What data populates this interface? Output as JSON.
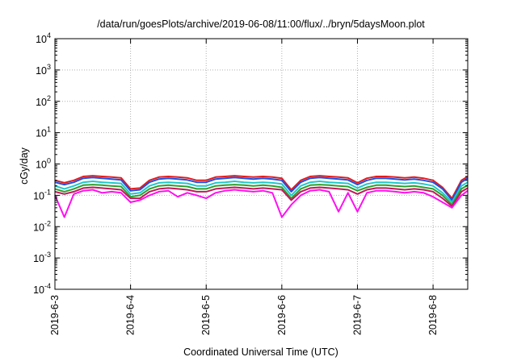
{
  "chart_data": {
    "type": "line",
    "title": "/data/run/goesPlots/archive/2019-06-08/11:00/flux/../bryn/5daysMoon.plot",
    "xlabel": "Coordinated Universal Time (UTC)",
    "ylabel": "cGy/day",
    "y_scale": "log",
    "ylim": [
      0.0001,
      10000
    ],
    "xlim": [
      "2019-06-03T00:00",
      "2019-06-08T11:00"
    ],
    "grid": true,
    "x_ticks": [
      "2019-6-3",
      "2019-6-4",
      "2019-6-5",
      "2019-6-6",
      "2019-6-7",
      "2019-6-8"
    ],
    "y_ticks": [
      {
        "base": "10",
        "exp": "-4"
      },
      {
        "base": "10",
        "exp": "-3"
      },
      {
        "base": "10",
        "exp": "-2"
      },
      {
        "base": "10",
        "exp": "-1"
      },
      {
        "base": "10",
        "exp": "0"
      },
      {
        "base": "10",
        "exp": "1"
      },
      {
        "base": "10",
        "exp": "2"
      },
      {
        "base": "10",
        "exp": "3"
      },
      {
        "base": "10",
        "exp": "4"
      }
    ],
    "x": [
      "2019-06-03T00:00",
      "2019-06-03T03:00",
      "2019-06-03T06:00",
      "2019-06-03T09:00",
      "2019-06-03T12:00",
      "2019-06-03T15:00",
      "2019-06-03T18:00",
      "2019-06-03T21:00",
      "2019-06-04T00:00",
      "2019-06-04T03:00",
      "2019-06-04T06:00",
      "2019-06-04T09:00",
      "2019-06-04T12:00",
      "2019-06-04T15:00",
      "2019-06-04T18:00",
      "2019-06-04T21:00",
      "2019-06-05T00:00",
      "2019-06-05T03:00",
      "2019-06-05T06:00",
      "2019-06-05T09:00",
      "2019-06-05T12:00",
      "2019-06-05T15:00",
      "2019-06-05T18:00",
      "2019-06-05T21:00",
      "2019-06-06T00:00",
      "2019-06-06T03:00",
      "2019-06-06T06:00",
      "2019-06-06T09:00",
      "2019-06-06T12:00",
      "2019-06-06T15:00",
      "2019-06-06T18:00",
      "2019-06-06T21:00",
      "2019-06-07T00:00",
      "2019-06-07T03:00",
      "2019-06-07T06:00",
      "2019-06-07T09:00",
      "2019-06-07T12:00",
      "2019-06-07T15:00",
      "2019-06-07T18:00",
      "2019-06-07T21:00",
      "2019-06-08T00:00",
      "2019-06-08T03:00",
      "2019-06-08T06:00",
      "2019-06-08T09:00",
      "2019-06-08T11:00"
    ],
    "series": [
      {
        "color": "#e41a1c",
        "values": [
          0.3,
          0.25,
          0.3,
          0.4,
          0.42,
          0.4,
          0.38,
          0.36,
          0.16,
          0.17,
          0.3,
          0.38,
          0.4,
          0.38,
          0.36,
          0.3,
          0.3,
          0.38,
          0.4,
          0.42,
          0.4,
          0.38,
          0.4,
          0.38,
          0.35,
          0.15,
          0.3,
          0.4,
          0.42,
          0.4,
          0.38,
          0.36,
          0.25,
          0.35,
          0.4,
          0.4,
          0.38,
          0.36,
          0.38,
          0.35,
          0.3,
          0.18,
          0.08,
          0.3,
          0.4
        ]
      },
      {
        "color": "#1f4fe0",
        "values": [
          0.26,
          0.22,
          0.26,
          0.35,
          0.37,
          0.35,
          0.33,
          0.31,
          0.14,
          0.15,
          0.26,
          0.33,
          0.35,
          0.33,
          0.31,
          0.26,
          0.26,
          0.33,
          0.35,
          0.37,
          0.35,
          0.33,
          0.35,
          0.33,
          0.3,
          0.13,
          0.26,
          0.35,
          0.37,
          0.35,
          0.33,
          0.31,
          0.22,
          0.3,
          0.35,
          0.35,
          0.33,
          0.31,
          0.33,
          0.3,
          0.26,
          0.16,
          0.07,
          0.26,
          0.35
        ]
      },
      {
        "color": "#20c8c8",
        "values": [
          0.2,
          0.16,
          0.2,
          0.26,
          0.28,
          0.26,
          0.25,
          0.24,
          0.11,
          0.12,
          0.2,
          0.25,
          0.26,
          0.25,
          0.24,
          0.2,
          0.2,
          0.25,
          0.26,
          0.28,
          0.26,
          0.25,
          0.26,
          0.25,
          0.23,
          0.1,
          0.2,
          0.26,
          0.28,
          0.26,
          0.25,
          0.24,
          0.17,
          0.23,
          0.26,
          0.26,
          0.25,
          0.24,
          0.25,
          0.23,
          0.2,
          0.12,
          0.06,
          0.2,
          0.26
        ]
      },
      {
        "color": "#2ca02c",
        "values": [
          0.16,
          0.13,
          0.16,
          0.21,
          0.22,
          0.21,
          0.2,
          0.19,
          0.09,
          0.1,
          0.16,
          0.2,
          0.21,
          0.2,
          0.19,
          0.16,
          0.16,
          0.2,
          0.21,
          0.22,
          0.21,
          0.2,
          0.21,
          0.2,
          0.18,
          0.08,
          0.16,
          0.21,
          0.22,
          0.21,
          0.2,
          0.19,
          0.14,
          0.18,
          0.21,
          0.21,
          0.2,
          0.19,
          0.2,
          0.18,
          0.16,
          0.1,
          0.05,
          0.16,
          0.21
        ]
      },
      {
        "color": "#c2185b",
        "values": [
          0.13,
          0.11,
          0.13,
          0.17,
          0.18,
          0.17,
          0.16,
          0.15,
          0.08,
          0.08,
          0.13,
          0.16,
          0.17,
          0.16,
          0.15,
          0.13,
          0.13,
          0.16,
          0.17,
          0.18,
          0.17,
          0.16,
          0.17,
          0.16,
          0.15,
          0.07,
          0.13,
          0.17,
          0.18,
          0.17,
          0.16,
          0.15,
          0.11,
          0.15,
          0.17,
          0.17,
          0.16,
          0.15,
          0.16,
          0.15,
          0.13,
          0.08,
          0.045,
          0.13,
          0.17
        ]
      },
      {
        "color": "#ff10f0",
        "values": [
          0.1,
          0.02,
          0.11,
          0.14,
          0.15,
          0.12,
          0.13,
          0.12,
          0.06,
          0.07,
          0.1,
          0.13,
          0.14,
          0.09,
          0.12,
          0.1,
          0.08,
          0.12,
          0.14,
          0.15,
          0.14,
          0.13,
          0.14,
          0.12,
          0.02,
          0.05,
          0.1,
          0.14,
          0.15,
          0.13,
          0.03,
          0.12,
          0.03,
          0.12,
          0.14,
          0.14,
          0.13,
          0.12,
          0.13,
          0.12,
          0.09,
          0.06,
          0.04,
          0.1,
          0.14
        ]
      }
    ]
  }
}
